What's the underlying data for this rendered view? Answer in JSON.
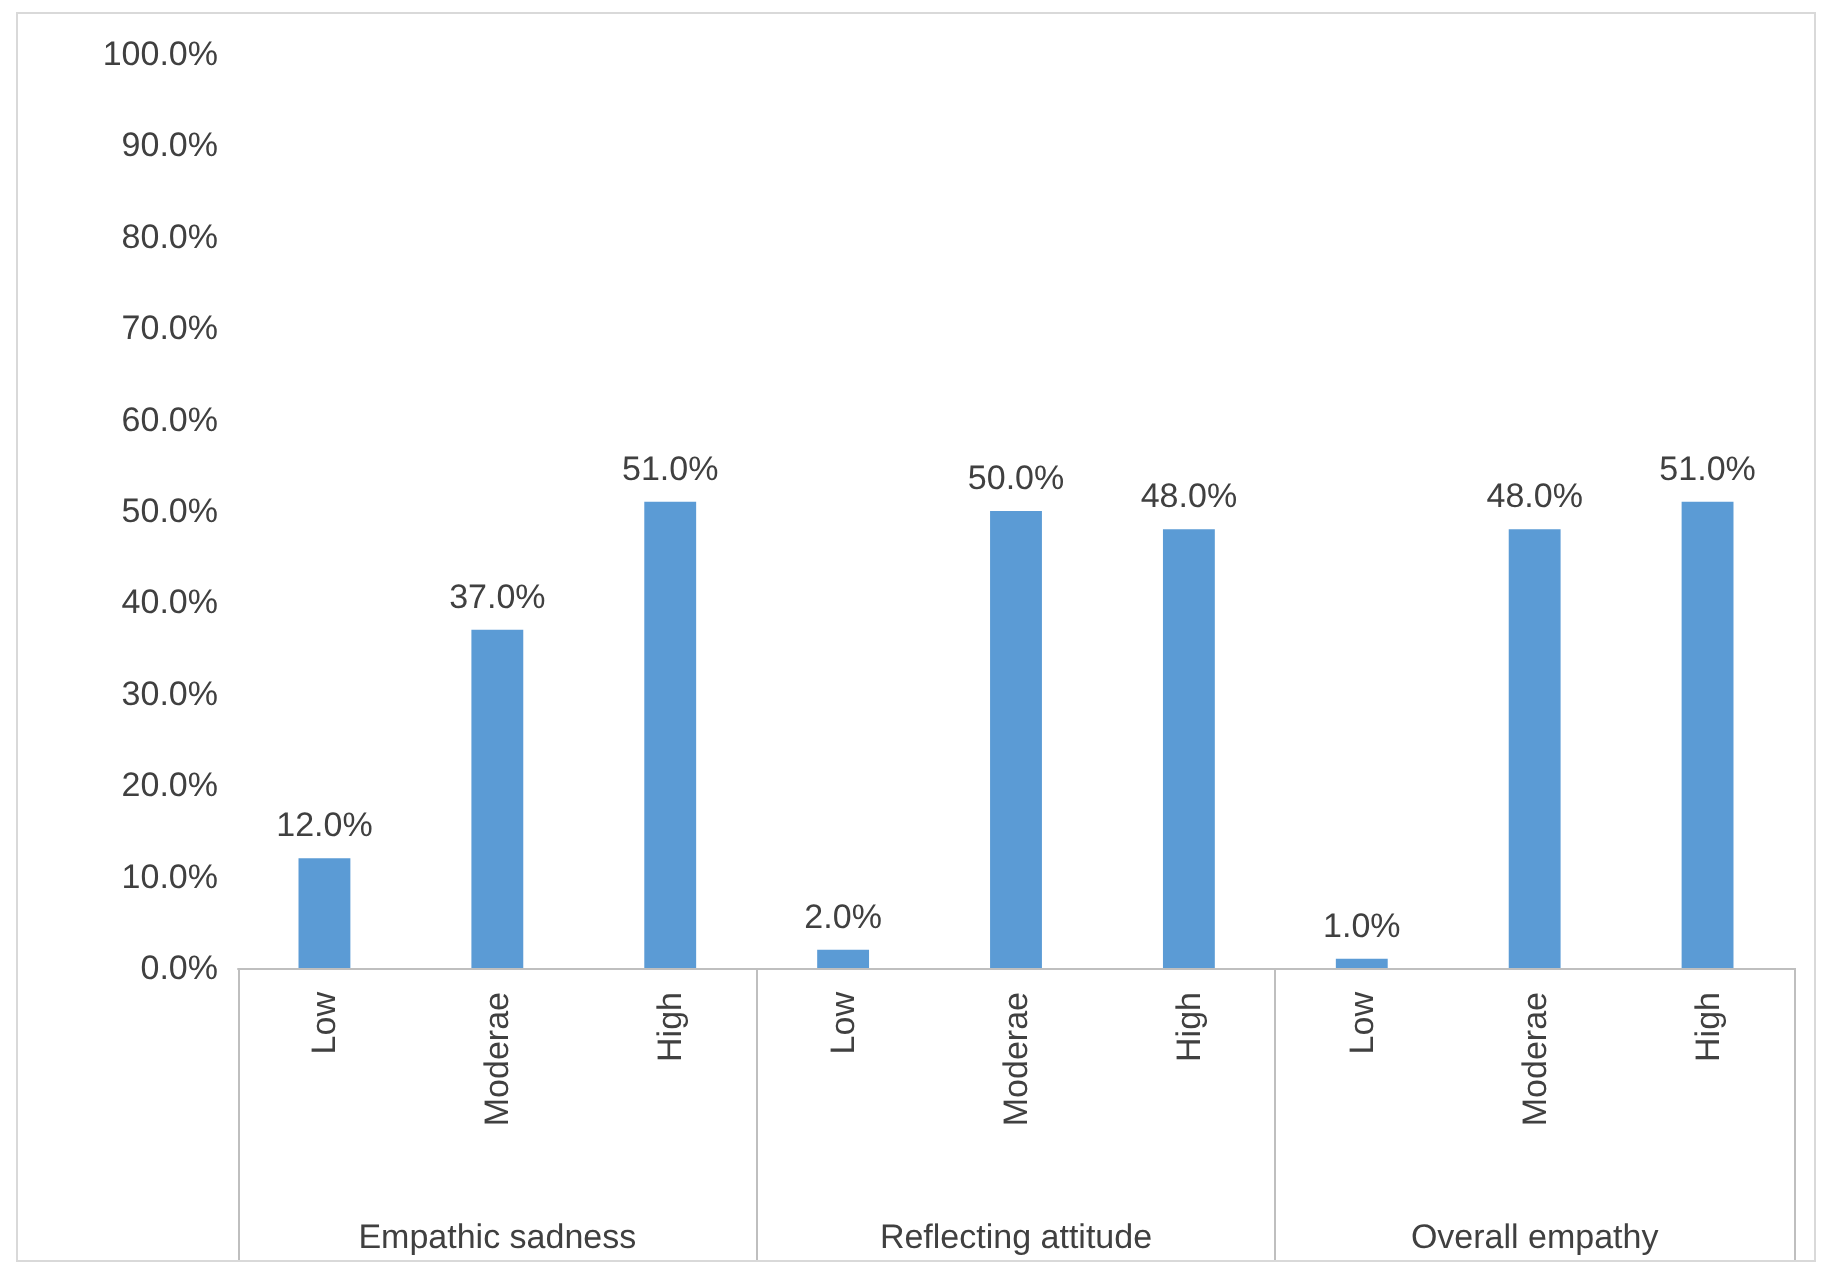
{
  "chart_data": {
    "type": "bar",
    "categories": [
      "Low",
      "Moderae",
      "High",
      "Low",
      "Moderae",
      "High",
      "Low",
      "Moderae",
      "High"
    ],
    "values": [
      12,
      37,
      51,
      2,
      50,
      48,
      1,
      48,
      51
    ],
    "value_labels": [
      "12.0%",
      "37.0%",
      "51.0%",
      "2.0%",
      "50.0%",
      "48.0%",
      "1.0%",
      "48.0%",
      "51.0%"
    ],
    "color": "#5b9bd5",
    "ylim": [
      0,
      100
    ],
    "yticks": [
      {
        "value": 0,
        "label": "0.0%"
      },
      {
        "value": 10,
        "label": "10.0%"
      },
      {
        "value": 20,
        "label": "20.0%"
      },
      {
        "value": 30,
        "label": "30.0%"
      },
      {
        "value": 40,
        "label": "40.0%"
      },
      {
        "value": 50,
        "label": "50.0%"
      },
      {
        "value": 60,
        "label": "60.0%"
      },
      {
        "value": 70,
        "label": "70.0%"
      },
      {
        "value": 80,
        "label": "80.0%"
      },
      {
        "value": 90,
        "label": "90.0%"
      },
      {
        "value": 100,
        "label": "100.0%"
      }
    ],
    "annotations": [
      "Empathic sadness",
      "Reflecting attitude",
      "Overall empathy"
    ],
    "grid": false
  }
}
